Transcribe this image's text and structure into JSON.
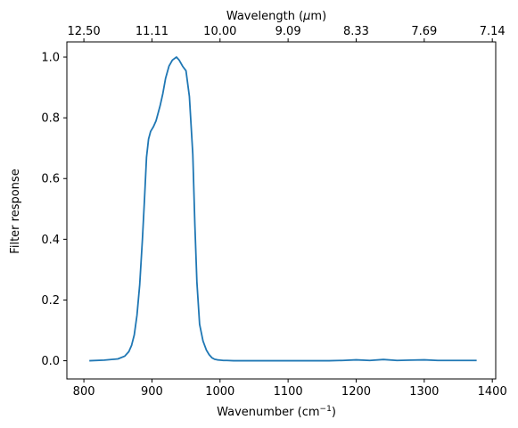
{
  "chart_data": {
    "type": "line",
    "xlabel": "Wavenumber (cm",
    "xlabel_sup": "−1",
    "xlabel_suffix": ")",
    "ylabel": "Filter response",
    "top_xlabel": "Wavelength (",
    "top_xlabel_mu": "μ",
    "top_xlabel_suffix": "m)",
    "xlim": [
      775,
      1405
    ],
    "ylim": [
      -0.06,
      1.05
    ],
    "xticks": [
      800,
      900,
      1000,
      1100,
      1200,
      1300,
      1400
    ],
    "xtick_labels": [
      "800",
      "900",
      "1000",
      "1100",
      "1200",
      "1300",
      "1400"
    ],
    "yticks": [
      0.0,
      0.2,
      0.4,
      0.6,
      0.8,
      1.0
    ],
    "ytick_labels": [
      "0.0",
      "0.2",
      "0.4",
      "0.6",
      "0.8",
      "1.0"
    ],
    "top_xticks": [
      800,
      900,
      1000,
      1100,
      1200,
      1300,
      1400
    ],
    "top_xtick_labels": [
      "12.50",
      "11.11",
      "10.00",
      "9.09",
      "8.33",
      "7.69",
      "7.14"
    ],
    "grid": false,
    "series_color": "#1f77b4",
    "x": [
      808,
      830,
      850,
      860,
      866,
      870,
      874,
      878,
      882,
      886,
      889,
      892,
      895,
      898,
      902,
      906,
      912,
      916,
      920,
      925,
      930,
      936,
      940,
      945,
      950,
      955,
      960,
      963,
      966,
      970,
      975,
      980,
      984,
      988,
      992,
      996,
      1000,
      1005,
      1010,
      1020,
      1040,
      1080,
      1120,
      1160,
      1180,
      1200,
      1220,
      1240,
      1260,
      1280,
      1300,
      1320,
      1340,
      1377
    ],
    "y": [
      0.0,
      0.002,
      0.006,
      0.015,
      0.03,
      0.05,
      0.085,
      0.15,
      0.25,
      0.4,
      0.53,
      0.67,
      0.73,
      0.755,
      0.77,
      0.79,
      0.84,
      0.88,
      0.93,
      0.97,
      0.99,
      1.0,
      0.99,
      0.97,
      0.955,
      0.87,
      0.68,
      0.45,
      0.26,
      0.12,
      0.065,
      0.035,
      0.02,
      0.01,
      0.005,
      0.003,
      0.002,
      0.001,
      0.001,
      0.0,
      0.0,
      0.0,
      0.0,
      0.0,
      0.001,
      0.003,
      0.001,
      0.004,
      0.001,
      0.002,
      0.003,
      0.001,
      0.001,
      0.001
    ]
  }
}
